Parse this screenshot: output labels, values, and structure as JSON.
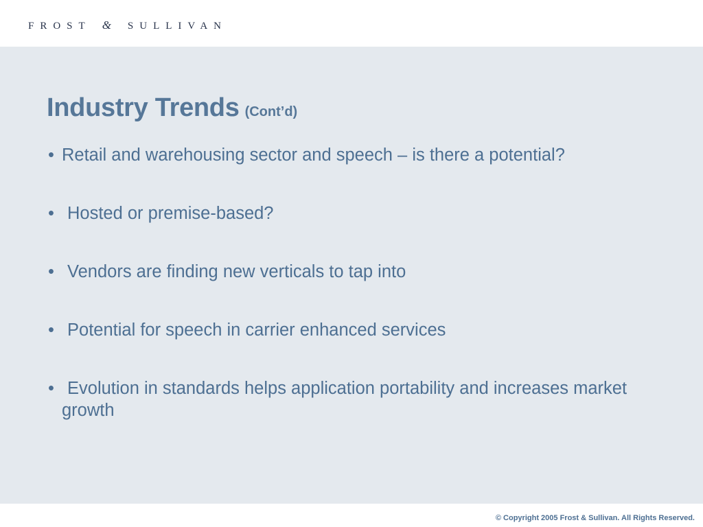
{
  "header": {
    "logo_left": "FROST",
    "logo_amp": "&",
    "logo_right": "SULLIVAN"
  },
  "slide": {
    "title": "Industry Trends",
    "title_suffix": "(Cont’d)",
    "bullet_symbol": "•",
    "bullets": [
      "Retail and warehousing sector and speech – is there a potential?",
      "Hosted or premise-based?",
      "Vendors are finding new verticals to tap into",
      "Potential for speech in carrier enhanced services",
      "Evolution in standards helps application portability and increases market growth"
    ]
  },
  "footer": {
    "copyright": "© Copyright 2005 Frost & Sullivan. All Rights Reserved."
  },
  "colors": {
    "panel_background": "#e4e9ee",
    "title": "#567798",
    "body_text": "#4d6f92",
    "logo": "#27324a"
  }
}
